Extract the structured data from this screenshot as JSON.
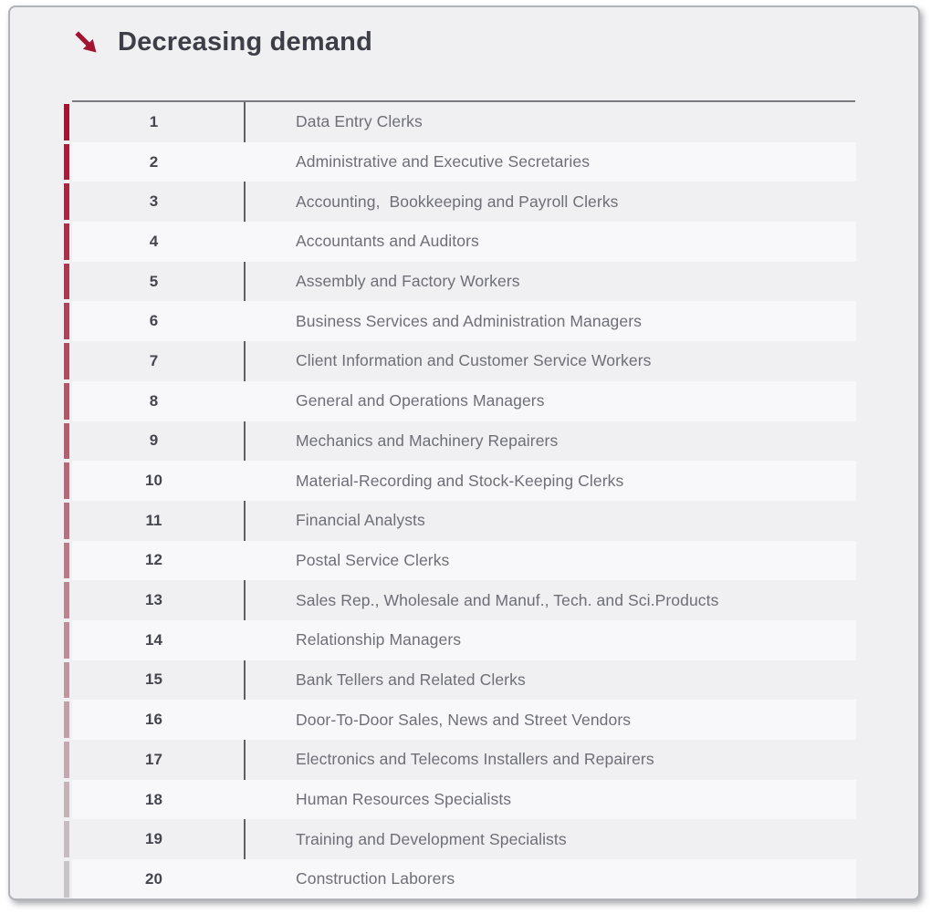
{
  "header": {
    "title": "Decreasing demand",
    "arrow_icon": "arrow-down-right-icon"
  },
  "colors": {
    "accent_red": "#a31431",
    "bar_fade_end": "#c8c5c7"
  },
  "table": {
    "rows": [
      {
        "rank": "1",
        "title": "Data Entry Clerks"
      },
      {
        "rank": "2",
        "title": "Administrative and Executive Secretaries"
      },
      {
        "rank": "3",
        "title": "Accounting,  Bookkeeping and Payroll Clerks"
      },
      {
        "rank": "4",
        "title": "Accountants and Auditors"
      },
      {
        "rank": "5",
        "title": "Assembly and Factory Workers"
      },
      {
        "rank": "6",
        "title": "Business Services and Administration Managers"
      },
      {
        "rank": "7",
        "title": "Client Information and Customer Service Workers"
      },
      {
        "rank": "8",
        "title": "General and Operations Managers"
      },
      {
        "rank": "9",
        "title": "Mechanics and Machinery Repairers"
      },
      {
        "rank": "10",
        "title": "Material-Recording and Stock-Keeping Clerks"
      },
      {
        "rank": "11",
        "title": "Financial Analysts"
      },
      {
        "rank": "12",
        "title": "Postal Service Clerks"
      },
      {
        "rank": "13",
        "title": "Sales Rep., Wholesale and Manuf., Tech. and Sci.Products"
      },
      {
        "rank": "14",
        "title": "Relationship Managers"
      },
      {
        "rank": "15",
        "title": "Bank Tellers and Related Clerks"
      },
      {
        "rank": "16",
        "title": "Door-To-Door Sales, News and Street Vendors"
      },
      {
        "rank": "17",
        "title": "Electronics and Telecoms Installers and Repairers"
      },
      {
        "rank": "18",
        "title": "Human Resources Specialists"
      },
      {
        "rank": "19",
        "title": "Training and Development Specialists"
      },
      {
        "rank": "20",
        "title": "Construction Laborers"
      }
    ]
  }
}
